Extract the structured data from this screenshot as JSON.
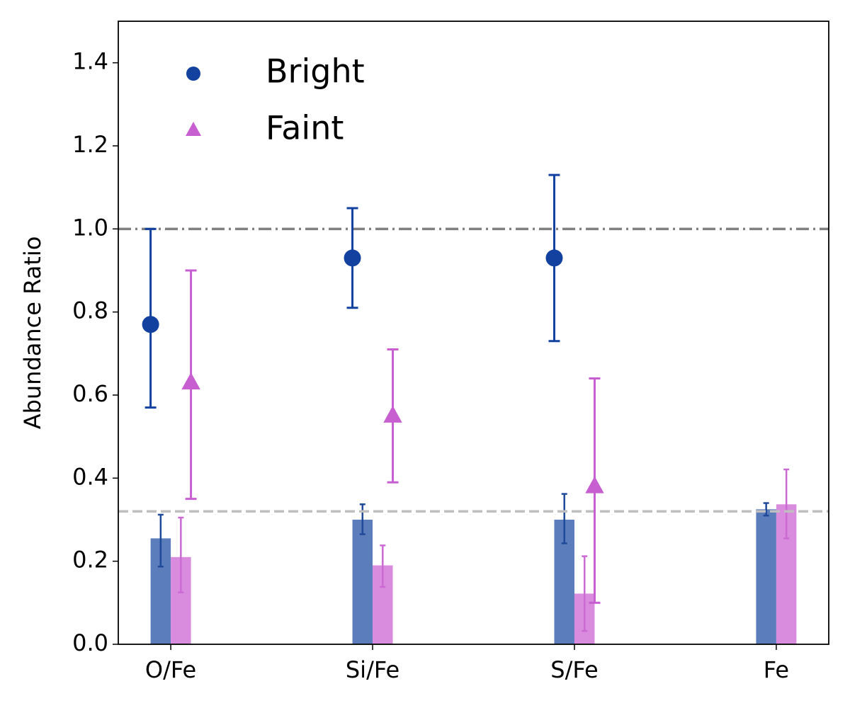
{
  "chart_data": {
    "type": "errorbar",
    "ylabel": "Abundance Ratio",
    "categories": [
      "O/Fe",
      "Si/Fe",
      "S/Fe",
      "Fe"
    ],
    "xlim": [
      -0.26,
      3.26
    ],
    "ylim": [
      0,
      1.5
    ],
    "yticks": [
      {
        "value": 0,
        "label": "0.0"
      },
      {
        "value": 0.2,
        "label": "0.2"
      },
      {
        "value": 0.4,
        "label": "0.4"
      },
      {
        "value": 0.6,
        "label": "0.6"
      },
      {
        "value": 0.8,
        "label": "0.8"
      },
      {
        "value": 1.0,
        "label": "1.0"
      },
      {
        "value": 1.2,
        "label": "1.2"
      },
      {
        "value": 1.4,
        "label": "1.4"
      }
    ],
    "legend": "upper left",
    "series": [
      {
        "name": "Bright",
        "color": "#1241a0",
        "marker": "circle",
        "values": [
          0.77,
          0.93,
          0.93,
          null
        ],
        "err_low": [
          0.2,
          0.12,
          0.2,
          null
        ],
        "err_high": [
          0.23,
          0.12,
          0.2,
          null
        ]
      },
      {
        "name": "Faint",
        "color": "#c75fd1",
        "marker": "triangle",
        "values": [
          0.63,
          0.55,
          0.38,
          null
        ],
        "err_low": [
          0.28,
          0.16,
          0.28,
          null
        ],
        "err_high": [
          0.27,
          0.16,
          0.26,
          null
        ]
      }
    ],
    "bars": [
      {
        "color": "#5b7dbc",
        "values": [
          0.255,
          0.3,
          0.3,
          0.325
        ],
        "err_low": [
          0.068,
          0.035,
          0.057,
          0.015
        ],
        "err_high": [
          0.057,
          0.037,
          0.062,
          0.015
        ]
      },
      {
        "color": "#d98bde",
        "values": [
          0.21,
          0.19,
          0.122,
          0.337
        ],
        "err_low": [
          0.085,
          0.052,
          0.09,
          0.082
        ],
        "err_high": [
          0.095,
          0.048,
          0.09,
          0.084
        ]
      }
    ],
    "hlines": [
      {
        "value": 1.0,
        "color": "#808080",
        "style": "dashdot"
      },
      {
        "value": 0.32,
        "color": "#bfbfbf",
        "style": "dashed"
      }
    ]
  }
}
